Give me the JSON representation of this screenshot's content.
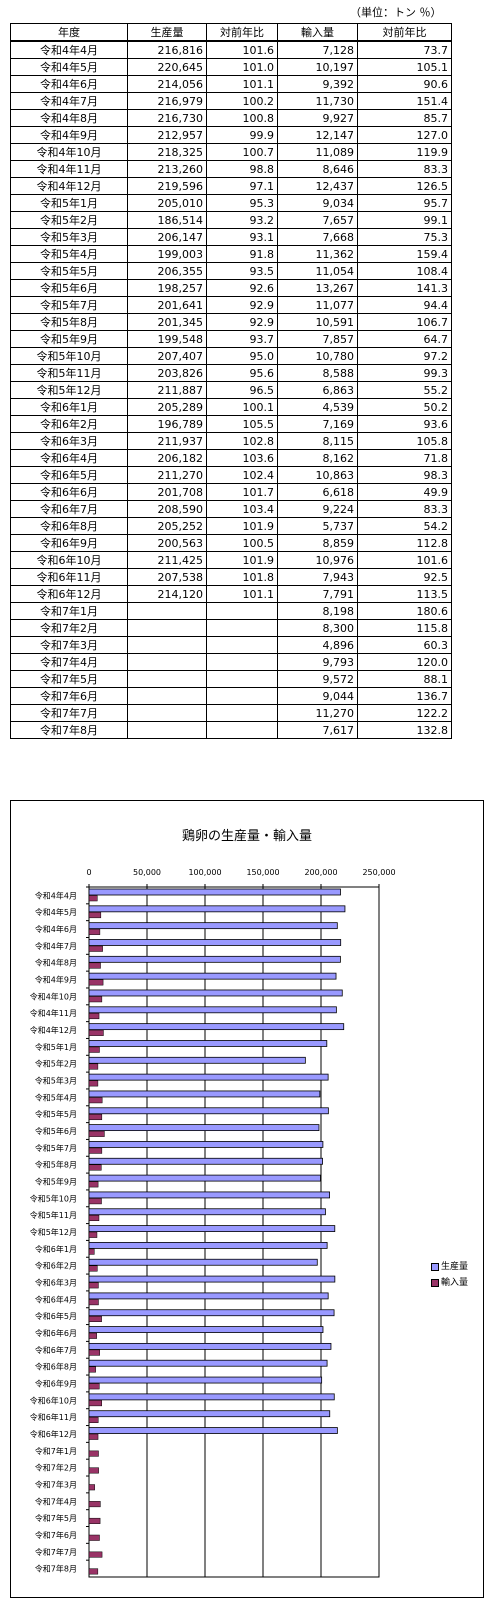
{
  "unit_label": "（単位：トン ％）",
  "table": {
    "headers": [
      "年度",
      "生産量",
      "対前年比",
      "輸入量",
      "対前年比"
    ],
    "rows": [
      [
        "令和4年4月",
        "216,816",
        "101.6",
        "7,128",
        "73.7"
      ],
      [
        "令和4年5月",
        "220,645",
        "101.0",
        "10,197",
        "105.1"
      ],
      [
        "令和4年6月",
        "214,056",
        "101.1",
        "9,392",
        "90.6"
      ],
      [
        "令和4年7月",
        "216,979",
        "100.2",
        "11,730",
        "151.4"
      ],
      [
        "令和4年8月",
        "216,730",
        "100.8",
        "9,927",
        "85.7"
      ],
      [
        "令和4年9月",
        "212,957",
        "99.9",
        "12,147",
        "127.0"
      ],
      [
        "令和4年10月",
        "218,325",
        "100.7",
        "11,089",
        "119.9"
      ],
      [
        "令和4年11月",
        "213,260",
        "98.8",
        "8,646",
        "83.3"
      ],
      [
        "令和4年12月",
        "219,596",
        "97.1",
        "12,437",
        "126.5"
      ],
      [
        "令和5年1月",
        "205,010",
        "95.3",
        "9,034",
        "95.7"
      ],
      [
        "令和5年2月",
        "186,514",
        "93.2",
        "7,657",
        "99.1"
      ],
      [
        "令和5年3月",
        "206,147",
        "93.1",
        "7,668",
        "75.3"
      ],
      [
        "令和5年4月",
        "199,003",
        "91.8",
        "11,362",
        "159.4"
      ],
      [
        "令和5年5月",
        "206,355",
        "93.5",
        "11,054",
        "108.4"
      ],
      [
        "令和5年6月",
        "198,257",
        "92.6",
        "13,267",
        "141.3"
      ],
      [
        "令和5年7月",
        "201,641",
        "92.9",
        "11,077",
        "94.4"
      ],
      [
        "令和5年8月",
        "201,345",
        "92.9",
        "10,591",
        "106.7"
      ],
      [
        "令和5年9月",
        "199,548",
        "93.7",
        "7,857",
        "64.7"
      ],
      [
        "令和5年10月",
        "207,407",
        "95.0",
        "10,780",
        "97.2"
      ],
      [
        "令和5年11月",
        "203,826",
        "95.6",
        "8,588",
        "99.3"
      ],
      [
        "令和5年12月",
        "211,887",
        "96.5",
        "6,863",
        "55.2"
      ],
      [
        "令和6年1月",
        "205,289",
        "100.1",
        "4,539",
        "50.2"
      ],
      [
        "令和6年2月",
        "196,789",
        "105.5",
        "7,169",
        "93.6"
      ],
      [
        "令和6年3月",
        "211,937",
        "102.8",
        "8,115",
        "105.8"
      ],
      [
        "令和6年4月",
        "206,182",
        "103.6",
        "8,162",
        "71.8"
      ],
      [
        "令和6年5月",
        "211,270",
        "102.4",
        "10,863",
        "98.3"
      ],
      [
        "令和6年6月",
        "201,708",
        "101.7",
        "6,618",
        "49.9"
      ],
      [
        "令和6年7月",
        "208,590",
        "103.4",
        "9,224",
        "83.3"
      ],
      [
        "令和6年8月",
        "205,252",
        "101.9",
        "5,737",
        "54.2"
      ],
      [
        "令和6年9月",
        "200,563",
        "100.5",
        "8,859",
        "112.8"
      ],
      [
        "令和6年10月",
        "211,425",
        "101.9",
        "10,976",
        "101.6"
      ],
      [
        "令和6年11月",
        "207,538",
        "101.8",
        "7,943",
        "92.5"
      ],
      [
        "令和6年12月",
        "214,120",
        "101.1",
        "7,791",
        "113.5"
      ],
      [
        "令和7年1月",
        "",
        "",
        "8,198",
        "180.6"
      ],
      [
        "令和7年2月",
        "",
        "",
        "8,300",
        "115.8"
      ],
      [
        "令和7年3月",
        "",
        "",
        "4,896",
        "60.3"
      ],
      [
        "令和7年4月",
        "",
        "",
        "9,793",
        "120.0"
      ],
      [
        "令和7年5月",
        "",
        "",
        "9,572",
        "88.1"
      ],
      [
        "令和7年6月",
        "",
        "",
        "9,044",
        "136.7"
      ],
      [
        "令和7年7月",
        "",
        "",
        "11,270",
        "122.2"
      ],
      [
        "令和7年8月",
        "",
        "",
        "7,617",
        "132.8"
      ]
    ]
  },
  "chart_data": {
    "type": "bar",
    "orientation": "horizontal",
    "title": "鶏卵の生産量・輸入量",
    "xlim": [
      0,
      250000
    ],
    "x_ticks": [
      "0",
      "50,000",
      "100,000",
      "150,000",
      "200,000",
      "250,000"
    ],
    "grid": true,
    "legend_position": "right",
    "categories": [
      "令和4年4月",
      "令和4年5月",
      "令和4年6月",
      "令和4年7月",
      "令和4年8月",
      "令和4年9月",
      "令和4年10月",
      "令和4年11月",
      "令和4年12月",
      "令和5年1月",
      "令和5年2月",
      "令和5年3月",
      "令和5年4月",
      "令和5年5月",
      "令和5年6月",
      "令和5年7月",
      "令和5年8月",
      "令和5年9月",
      "令和5年10月",
      "令和5年11月",
      "令和5年12月",
      "令和6年1月",
      "令和6年2月",
      "令和6年3月",
      "令和6年4月",
      "令和6年5月",
      "令和6年6月",
      "令和6年7月",
      "令和6年8月",
      "令和6年9月",
      "令和6年10月",
      "令和6年11月",
      "令和6年12月",
      "令和7年1月",
      "令和7年2月",
      "令和7年3月",
      "令和7年4月",
      "令和7年5月",
      "令和7年6月",
      "令和7年7月",
      "令和7年8月"
    ],
    "series": [
      {
        "name": "生産量",
        "color": "#9999ff",
        "values": [
          216816,
          220645,
          214056,
          216979,
          216730,
          212957,
          218325,
          213260,
          219596,
          205010,
          186514,
          206147,
          199003,
          206355,
          198257,
          201641,
          201345,
          199548,
          207407,
          203826,
          211887,
          205289,
          196789,
          211937,
          206182,
          211270,
          201708,
          208590,
          205252,
          200563,
          211425,
          207538,
          214120,
          null,
          null,
          null,
          null,
          null,
          null,
          null,
          null
        ]
      },
      {
        "name": "輸入量",
        "color": "#993366",
        "values": [
          7128,
          10197,
          9392,
          11730,
          9927,
          12147,
          11089,
          8646,
          12437,
          9034,
          7657,
          7668,
          11362,
          11054,
          13267,
          11077,
          10591,
          7857,
          10780,
          8588,
          6863,
          4539,
          7169,
          8115,
          8162,
          10863,
          6618,
          9224,
          5737,
          8859,
          10976,
          7943,
          7791,
          8198,
          8300,
          4896,
          9793,
          9572,
          9044,
          11270,
          7617
        ]
      }
    ]
  }
}
